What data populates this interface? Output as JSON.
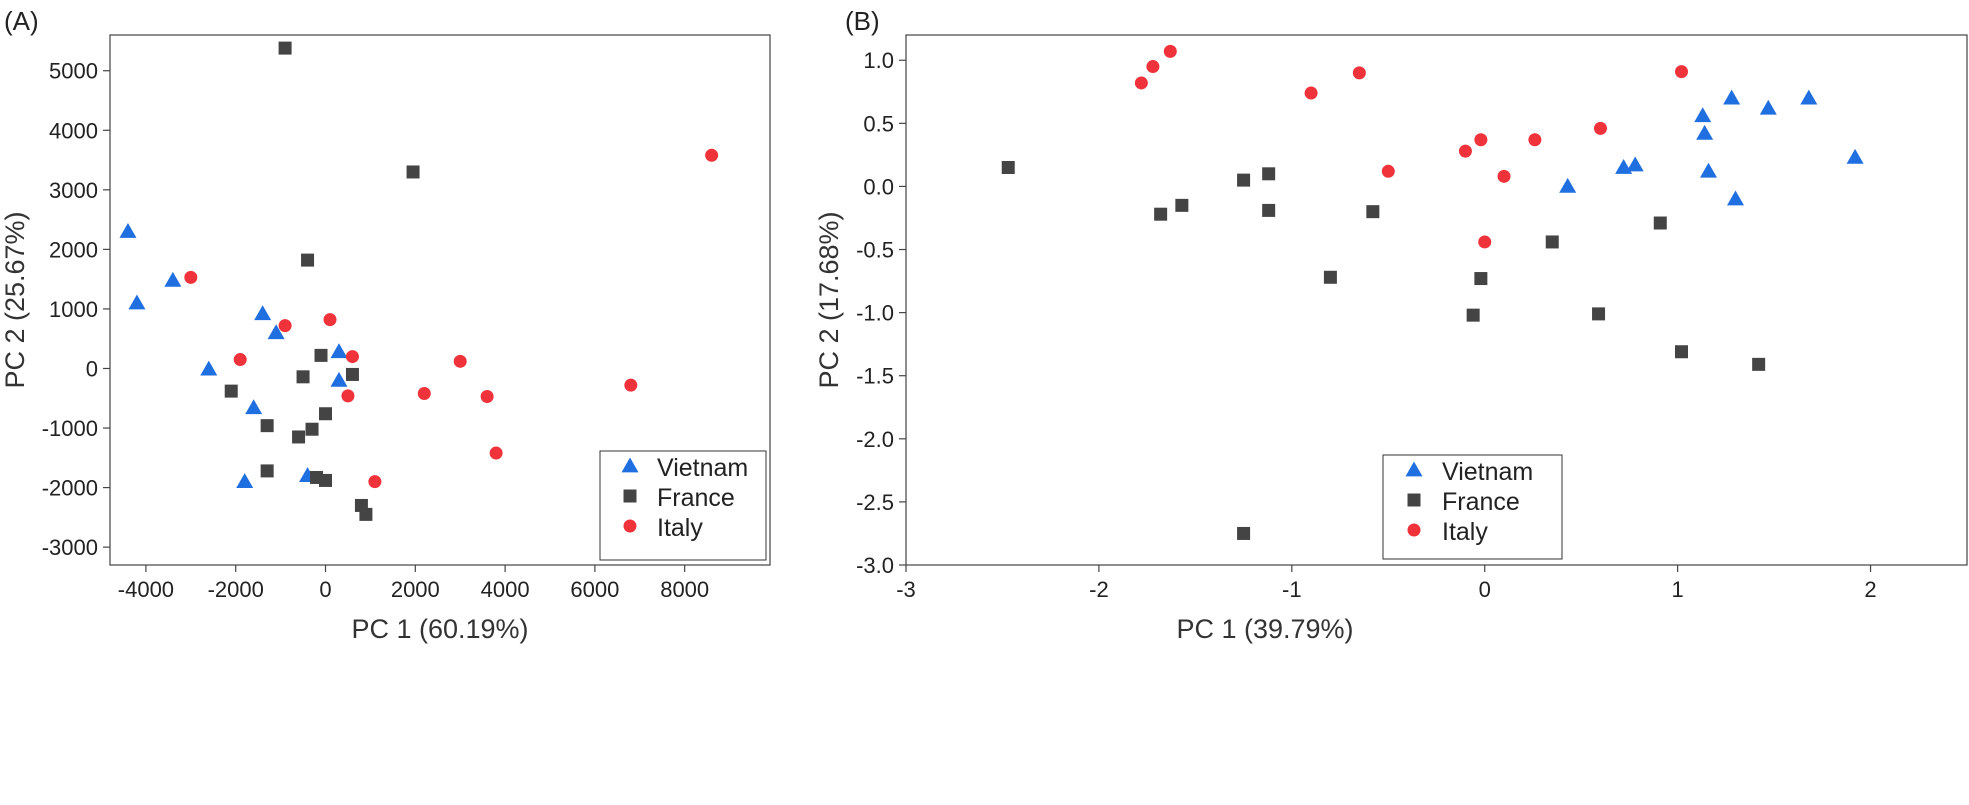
{
  "colors": {
    "Vietnam": "#1f6fe0",
    "France": "#444444",
    "Italy": "#f0333a"
  },
  "chart_data": [
    {
      "panel_label": "(A)",
      "type": "scatter",
      "xlabel": "PC 1 (60.19%)",
      "ylabel": "PC 2 (25.67%)",
      "xlim": [
        -4800,
        9900
      ],
      "ylim": [
        -3300,
        5600
      ],
      "xticks": [
        -4000,
        -2000,
        0,
        2000,
        4000,
        6000,
        8000
      ],
      "yticks": [
        -3000,
        -2000,
        -1000,
        0,
        1000,
        2000,
        3000,
        4000,
        5000
      ],
      "legend_position": "bottom-right",
      "series": [
        {
          "name": "Vietnam",
          "marker": "triangle",
          "points": [
            [
              -4400,
              2300
            ],
            [
              -4200,
              1100
            ],
            [
              -3400,
              1480
            ],
            [
              -1400,
              920
            ],
            [
              -1100,
              600
            ],
            [
              -2600,
              -10
            ],
            [
              -1600,
              -660
            ],
            [
              -1800,
              -1900
            ],
            [
              -400,
              -1800
            ],
            [
              300,
              280
            ],
            [
              300,
              -200
            ]
          ]
        },
        {
          "name": "France",
          "marker": "square",
          "points": [
            [
              -900,
              5380
            ],
            [
              1950,
              3300
            ],
            [
              -400,
              1820
            ],
            [
              -100,
              220
            ],
            [
              -500,
              -140
            ],
            [
              600,
              -100
            ],
            [
              -2100,
              -380
            ],
            [
              -1300,
              -960
            ],
            [
              -300,
              -1020
            ],
            [
              -600,
              -1150
            ],
            [
              0,
              -760
            ],
            [
              -1300,
              -1720
            ],
            [
              -200,
              -1830
            ],
            [
              0,
              -1880
            ],
            [
              800,
              -2300
            ],
            [
              900,
              -2450
            ]
          ]
        },
        {
          "name": "Italy",
          "marker": "circle",
          "points": [
            [
              8600,
              3580
            ],
            [
              -3000,
              1530
            ],
            [
              -900,
              720
            ],
            [
              100,
              820
            ],
            [
              -1900,
              150
            ],
            [
              600,
              200
            ],
            [
              3000,
              120
            ],
            [
              6800,
              -280
            ],
            [
              2200,
              -420
            ],
            [
              500,
              -460
            ],
            [
              3600,
              -470
            ],
            [
              3800,
              -1420
            ],
            [
              1100,
              -1900
            ]
          ]
        }
      ]
    },
    {
      "panel_label": "(B)",
      "type": "scatter",
      "xlabel": "PC 1 (39.79%)",
      "ylabel": "PC 2 (17.68%)",
      "xlim": [
        -3,
        2.5
      ],
      "ylim": [
        -3.0,
        1.2
      ],
      "xticks": [
        -3,
        -2,
        -1,
        0,
        1,
        2
      ],
      "yticks": [
        -3.0,
        -2.5,
        -2.0,
        -1.5,
        -1.0,
        -0.5,
        0.0,
        0.5,
        1.0
      ],
      "legend_position": "bottom-right",
      "series": [
        {
          "name": "Vietnam",
          "marker": "triangle",
          "points": [
            [
              1.28,
              0.7
            ],
            [
              1.68,
              0.7
            ],
            [
              1.47,
              0.62
            ],
            [
              1.13,
              0.56
            ],
            [
              1.14,
              0.42
            ],
            [
              1.92,
              0.23
            ],
            [
              0.72,
              0.15
            ],
            [
              0.78,
              0.17
            ],
            [
              1.16,
              0.12
            ],
            [
              0.43,
              0.0
            ],
            [
              1.3,
              -0.1
            ]
          ]
        },
        {
          "name": "France",
          "marker": "square",
          "points": [
            [
              -2.47,
              0.15
            ],
            [
              -1.68,
              -0.22
            ],
            [
              -1.57,
              -0.15
            ],
            [
              -1.25,
              0.05
            ],
            [
              -1.12,
              0.1
            ],
            [
              -1.12,
              -0.19
            ],
            [
              -0.58,
              -0.2
            ],
            [
              -0.8,
              -0.72
            ],
            [
              -0.02,
              -0.73
            ],
            [
              -0.06,
              -1.02
            ],
            [
              0.35,
              -0.44
            ],
            [
              0.91,
              -0.29
            ],
            [
              0.59,
              -1.01
            ],
            [
              1.02,
              -1.31
            ],
            [
              1.42,
              -1.41
            ],
            [
              -1.25,
              -2.75
            ]
          ]
        },
        {
          "name": "Italy",
          "marker": "circle",
          "points": [
            [
              -1.63,
              1.07
            ],
            [
              -1.72,
              0.95
            ],
            [
              -1.78,
              0.82
            ],
            [
              -0.65,
              0.9
            ],
            [
              -0.9,
              0.74
            ],
            [
              1.02,
              0.91
            ],
            [
              0.6,
              0.46
            ],
            [
              -0.02,
              0.37
            ],
            [
              0.26,
              0.37
            ],
            [
              -0.1,
              0.28
            ],
            [
              -0.5,
              0.12
            ],
            [
              0.1,
              0.08
            ],
            [
              0.0,
              -0.44
            ]
          ]
        }
      ]
    }
  ]
}
